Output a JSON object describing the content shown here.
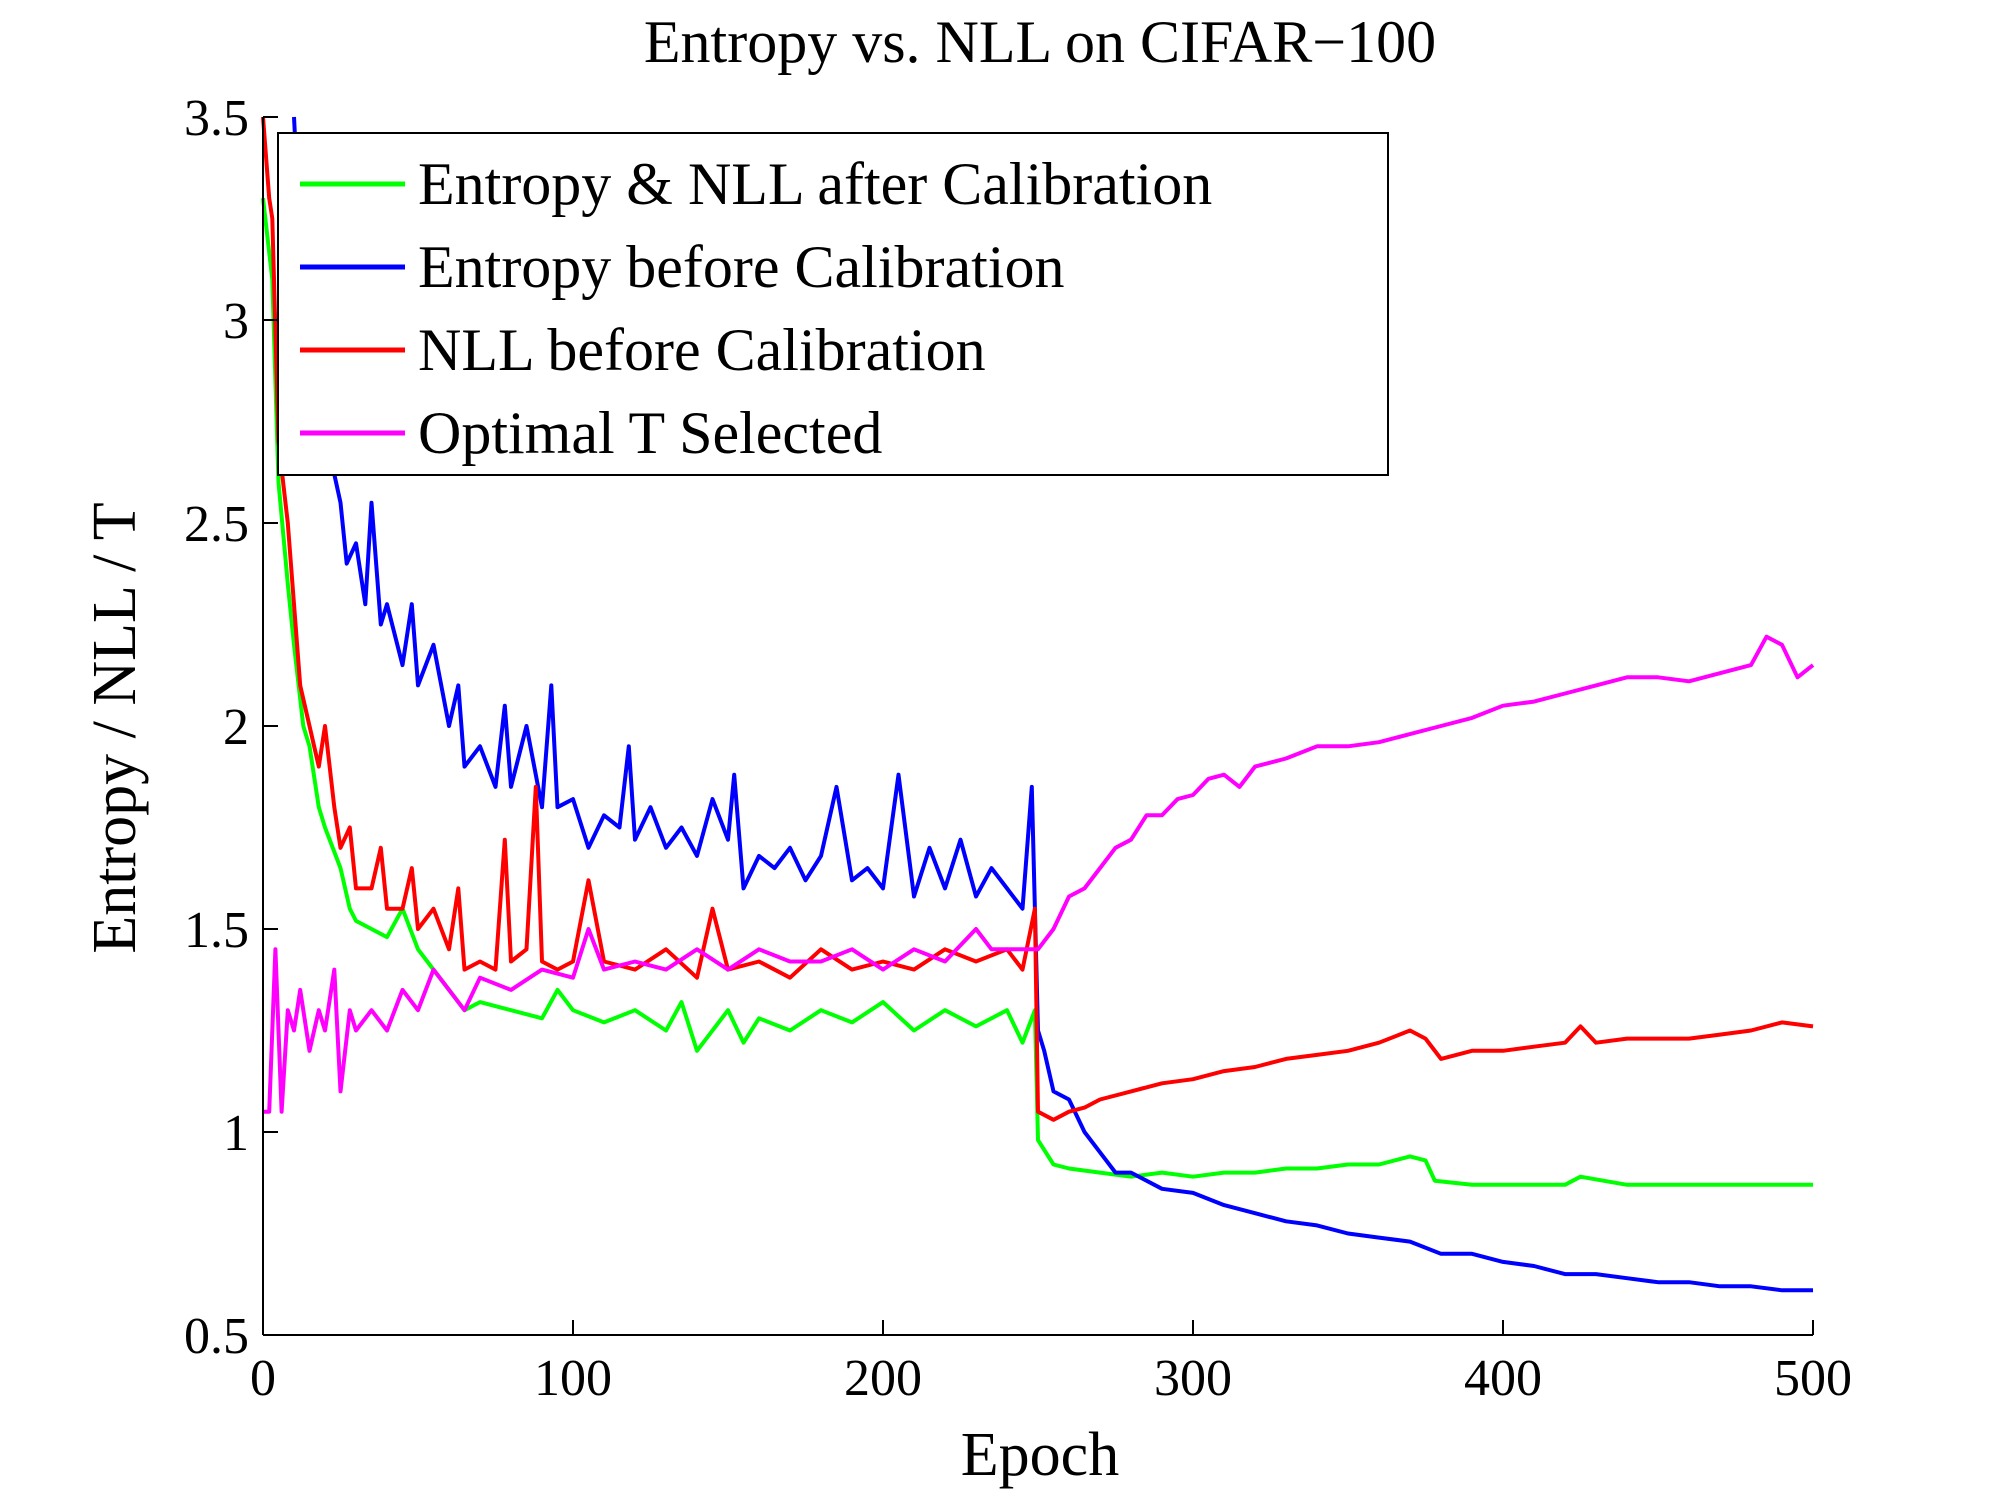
{
  "chart_data": {
    "type": "line",
    "title": "Entropy vs. NLL on CIFAR−100",
    "xlabel": "Epoch",
    "ylabel": "Entropy / NLL / T",
    "xlim": [
      0,
      500
    ],
    "ylim": [
      0.5,
      3.5
    ],
    "xticks": [
      "0",
      "100",
      "200",
      "300",
      "400",
      "500"
    ],
    "yticks": [
      "0.5",
      "1",
      "1.5",
      "2",
      "2.5",
      "3",
      "3.5"
    ],
    "grid": false,
    "legend_position": "top-left",
    "series": [
      {
        "name": "Entropy & NLL after Calibration",
        "color": "#00ff00",
        "points": [
          [
            0,
            3.3
          ],
          [
            3,
            3.1
          ],
          [
            5,
            2.6
          ],
          [
            8,
            2.35
          ],
          [
            10,
            2.2
          ],
          [
            13,
            2.0
          ],
          [
            15,
            1.95
          ],
          [
            18,
            1.8
          ],
          [
            20,
            1.75
          ],
          [
            25,
            1.65
          ],
          [
            28,
            1.55
          ],
          [
            30,
            1.52
          ],
          [
            35,
            1.5
          ],
          [
            40,
            1.48
          ],
          [
            45,
            1.55
          ],
          [
            50,
            1.45
          ],
          [
            55,
            1.4
          ],
          [
            60,
            1.35
          ],
          [
            65,
            1.3
          ],
          [
            70,
            1.32
          ],
          [
            80,
            1.3
          ],
          [
            90,
            1.28
          ],
          [
            95,
            1.35
          ],
          [
            100,
            1.3
          ],
          [
            110,
            1.27
          ],
          [
            120,
            1.3
          ],
          [
            130,
            1.25
          ],
          [
            135,
            1.32
          ],
          [
            140,
            1.2
          ],
          [
            150,
            1.3
          ],
          [
            155,
            1.22
          ],
          [
            160,
            1.28
          ],
          [
            170,
            1.25
          ],
          [
            180,
            1.3
          ],
          [
            190,
            1.27
          ],
          [
            200,
            1.32
          ],
          [
            210,
            1.25
          ],
          [
            220,
            1.3
          ],
          [
            230,
            1.26
          ],
          [
            240,
            1.3
          ],
          [
            245,
            1.22
          ],
          [
            249,
            1.3
          ],
          [
            250,
            0.98
          ],
          [
            255,
            0.92
          ],
          [
            260,
            0.91
          ],
          [
            270,
            0.9
          ],
          [
            280,
            0.89
          ],
          [
            290,
            0.9
          ],
          [
            300,
            0.89
          ],
          [
            310,
            0.9
          ],
          [
            320,
            0.9
          ],
          [
            330,
            0.91
          ],
          [
            340,
            0.91
          ],
          [
            350,
            0.92
          ],
          [
            360,
            0.92
          ],
          [
            370,
            0.94
          ],
          [
            375,
            0.93
          ],
          [
            378,
            0.88
          ],
          [
            390,
            0.87
          ],
          [
            400,
            0.87
          ],
          [
            420,
            0.87
          ],
          [
            425,
            0.89
          ],
          [
            440,
            0.87
          ],
          [
            460,
            0.87
          ],
          [
            480,
            0.87
          ],
          [
            500,
            0.87
          ]
        ]
      },
      {
        "name": "Entropy before Calibration",
        "color": "#0000ff",
        "points": [
          [
            10,
            3.5
          ],
          [
            12,
            3.2
          ],
          [
            15,
            3.0
          ],
          [
            18,
            2.85
          ],
          [
            20,
            2.7
          ],
          [
            23,
            2.62
          ],
          [
            25,
            2.55
          ],
          [
            27,
            2.4
          ],
          [
            30,
            2.45
          ],
          [
            33,
            2.3
          ],
          [
            35,
            2.55
          ],
          [
            38,
            2.25
          ],
          [
            40,
            2.3
          ],
          [
            45,
            2.15
          ],
          [
            48,
            2.3
          ],
          [
            50,
            2.1
          ],
          [
            55,
            2.2
          ],
          [
            60,
            2.0
          ],
          [
            63,
            2.1
          ],
          [
            65,
            1.9
          ],
          [
            70,
            1.95
          ],
          [
            75,
            1.85
          ],
          [
            78,
            2.05
          ],
          [
            80,
            1.85
          ],
          [
            85,
            2.0
          ],
          [
            90,
            1.8
          ],
          [
            93,
            2.1
          ],
          [
            95,
            1.8
          ],
          [
            100,
            1.82
          ],
          [
            105,
            1.7
          ],
          [
            110,
            1.78
          ],
          [
            115,
            1.75
          ],
          [
            118,
            1.95
          ],
          [
            120,
            1.72
          ],
          [
            125,
            1.8
          ],
          [
            130,
            1.7
          ],
          [
            135,
            1.75
          ],
          [
            140,
            1.68
          ],
          [
            145,
            1.82
          ],
          [
            150,
            1.72
          ],
          [
            152,
            1.88
          ],
          [
            155,
            1.6
          ],
          [
            160,
            1.68
          ],
          [
            165,
            1.65
          ],
          [
            170,
            1.7
          ],
          [
            175,
            1.62
          ],
          [
            180,
            1.68
          ],
          [
            185,
            1.85
          ],
          [
            190,
            1.62
          ],
          [
            195,
            1.65
          ],
          [
            200,
            1.6
          ],
          [
            205,
            1.88
          ],
          [
            210,
            1.58
          ],
          [
            215,
            1.7
          ],
          [
            220,
            1.6
          ],
          [
            225,
            1.72
          ],
          [
            230,
            1.58
          ],
          [
            235,
            1.65
          ],
          [
            240,
            1.6
          ],
          [
            245,
            1.55
          ],
          [
            248,
            1.85
          ],
          [
            250,
            1.25
          ],
          [
            252,
            1.2
          ],
          [
            255,
            1.1
          ],
          [
            260,
            1.08
          ],
          [
            265,
            1.0
          ],
          [
            270,
            0.95
          ],
          [
            275,
            0.9
          ],
          [
            280,
            0.9
          ],
          [
            290,
            0.86
          ],
          [
            300,
            0.85
          ],
          [
            310,
            0.82
          ],
          [
            320,
            0.8
          ],
          [
            330,
            0.78
          ],
          [
            340,
            0.77
          ],
          [
            350,
            0.75
          ],
          [
            360,
            0.74
          ],
          [
            370,
            0.73
          ],
          [
            380,
            0.7
          ],
          [
            390,
            0.7
          ],
          [
            400,
            0.68
          ],
          [
            410,
            0.67
          ],
          [
            420,
            0.65
          ],
          [
            430,
            0.65
          ],
          [
            440,
            0.64
          ],
          [
            450,
            0.63
          ],
          [
            460,
            0.63
          ],
          [
            470,
            0.62
          ],
          [
            480,
            0.62
          ],
          [
            490,
            0.61
          ],
          [
            500,
            0.61
          ]
        ]
      },
      {
        "name": "NLL before Calibration",
        "color": "#ff0000",
        "points": [
          [
            0,
            3.5
          ],
          [
            2,
            3.3
          ],
          [
            3,
            3.25
          ],
          [
            5,
            2.7
          ],
          [
            8,
            2.5
          ],
          [
            10,
            2.3
          ],
          [
            12,
            2.1
          ],
          [
            15,
            2.0
          ],
          [
            18,
            1.9
          ],
          [
            20,
            2.0
          ],
          [
            23,
            1.8
          ],
          [
            25,
            1.7
          ],
          [
            28,
            1.75
          ],
          [
            30,
            1.6
          ],
          [
            35,
            1.6
          ],
          [
            38,
            1.7
          ],
          [
            40,
            1.55
          ],
          [
            45,
            1.55
          ],
          [
            48,
            1.65
          ],
          [
            50,
            1.5
          ],
          [
            55,
            1.55
          ],
          [
            60,
            1.45
          ],
          [
            63,
            1.6
          ],
          [
            65,
            1.4
          ],
          [
            70,
            1.42
          ],
          [
            75,
            1.4
          ],
          [
            78,
            1.72
          ],
          [
            80,
            1.42
          ],
          [
            85,
            1.45
          ],
          [
            88,
            1.85
          ],
          [
            90,
            1.42
          ],
          [
            95,
            1.4
          ],
          [
            100,
            1.42
          ],
          [
            105,
            1.62
          ],
          [
            110,
            1.42
          ],
          [
            120,
            1.4
          ],
          [
            130,
            1.45
          ],
          [
            140,
            1.38
          ],
          [
            145,
            1.55
          ],
          [
            150,
            1.4
          ],
          [
            160,
            1.42
          ],
          [
            170,
            1.38
          ],
          [
            180,
            1.45
          ],
          [
            190,
            1.4
          ],
          [
            200,
            1.42
          ],
          [
            210,
            1.4
          ],
          [
            220,
            1.45
          ],
          [
            230,
            1.42
          ],
          [
            240,
            1.45
          ],
          [
            245,
            1.4
          ],
          [
            249,
            1.55
          ],
          [
            250,
            1.05
          ],
          [
            255,
            1.03
          ],
          [
            260,
            1.05
          ],
          [
            265,
            1.06
          ],
          [
            270,
            1.08
          ],
          [
            280,
            1.1
          ],
          [
            290,
            1.12
          ],
          [
            300,
            1.13
          ],
          [
            310,
            1.15
          ],
          [
            320,
            1.16
          ],
          [
            330,
            1.18
          ],
          [
            340,
            1.19
          ],
          [
            350,
            1.2
          ],
          [
            360,
            1.22
          ],
          [
            370,
            1.25
          ],
          [
            375,
            1.23
          ],
          [
            380,
            1.18
          ],
          [
            390,
            1.2
          ],
          [
            400,
            1.2
          ],
          [
            410,
            1.21
          ],
          [
            420,
            1.22
          ],
          [
            425,
            1.26
          ],
          [
            430,
            1.22
          ],
          [
            440,
            1.23
          ],
          [
            450,
            1.23
          ],
          [
            460,
            1.23
          ],
          [
            470,
            1.24
          ],
          [
            480,
            1.25
          ],
          [
            490,
            1.27
          ],
          [
            500,
            1.26
          ]
        ]
      },
      {
        "name": "Optimal T Selected",
        "color": "#ff00ff",
        "points": [
          [
            0,
            1.05
          ],
          [
            2,
            1.05
          ],
          [
            4,
            1.45
          ],
          [
            6,
            1.05
          ],
          [
            8,
            1.3
          ],
          [
            10,
            1.25
          ],
          [
            12,
            1.35
          ],
          [
            15,
            1.2
          ],
          [
            18,
            1.3
          ],
          [
            20,
            1.25
          ],
          [
            23,
            1.4
          ],
          [
            25,
            1.1
          ],
          [
            28,
            1.3
          ],
          [
            30,
            1.25
          ],
          [
            35,
            1.3
          ],
          [
            40,
            1.25
          ],
          [
            45,
            1.35
          ],
          [
            50,
            1.3
          ],
          [
            55,
            1.4
          ],
          [
            60,
            1.35
          ],
          [
            65,
            1.3
          ],
          [
            70,
            1.38
          ],
          [
            80,
            1.35
          ],
          [
            90,
            1.4
          ],
          [
            100,
            1.38
          ],
          [
            105,
            1.5
          ],
          [
            110,
            1.4
          ],
          [
            120,
            1.42
          ],
          [
            130,
            1.4
          ],
          [
            140,
            1.45
          ],
          [
            150,
            1.4
          ],
          [
            160,
            1.45
          ],
          [
            170,
            1.42
          ],
          [
            180,
            1.42
          ],
          [
            190,
            1.45
          ],
          [
            200,
            1.4
          ],
          [
            210,
            1.45
          ],
          [
            220,
            1.42
          ],
          [
            230,
            1.5
          ],
          [
            235,
            1.45
          ],
          [
            240,
            1.45
          ],
          [
            250,
            1.45
          ],
          [
            255,
            1.5
          ],
          [
            260,
            1.58
          ],
          [
            265,
            1.6
          ],
          [
            270,
            1.65
          ],
          [
            275,
            1.7
          ],
          [
            280,
            1.72
          ],
          [
            285,
            1.78
          ],
          [
            290,
            1.78
          ],
          [
            295,
            1.82
          ],
          [
            300,
            1.83
          ],
          [
            305,
            1.87
          ],
          [
            310,
            1.88
          ],
          [
            315,
            1.85
          ],
          [
            320,
            1.9
          ],
          [
            330,
            1.92
          ],
          [
            340,
            1.95
          ],
          [
            350,
            1.95
          ],
          [
            360,
            1.96
          ],
          [
            370,
            1.98
          ],
          [
            380,
            2.0
          ],
          [
            390,
            2.02
          ],
          [
            400,
            2.05
          ],
          [
            410,
            2.06
          ],
          [
            420,
            2.08
          ],
          [
            430,
            2.1
          ],
          [
            440,
            2.12
          ],
          [
            450,
            2.12
          ],
          [
            460,
            2.11
          ],
          [
            470,
            2.13
          ],
          [
            480,
            2.15
          ],
          [
            485,
            2.22
          ],
          [
            490,
            2.2
          ],
          [
            495,
            2.12
          ],
          [
            500,
            2.15
          ]
        ]
      }
    ]
  }
}
